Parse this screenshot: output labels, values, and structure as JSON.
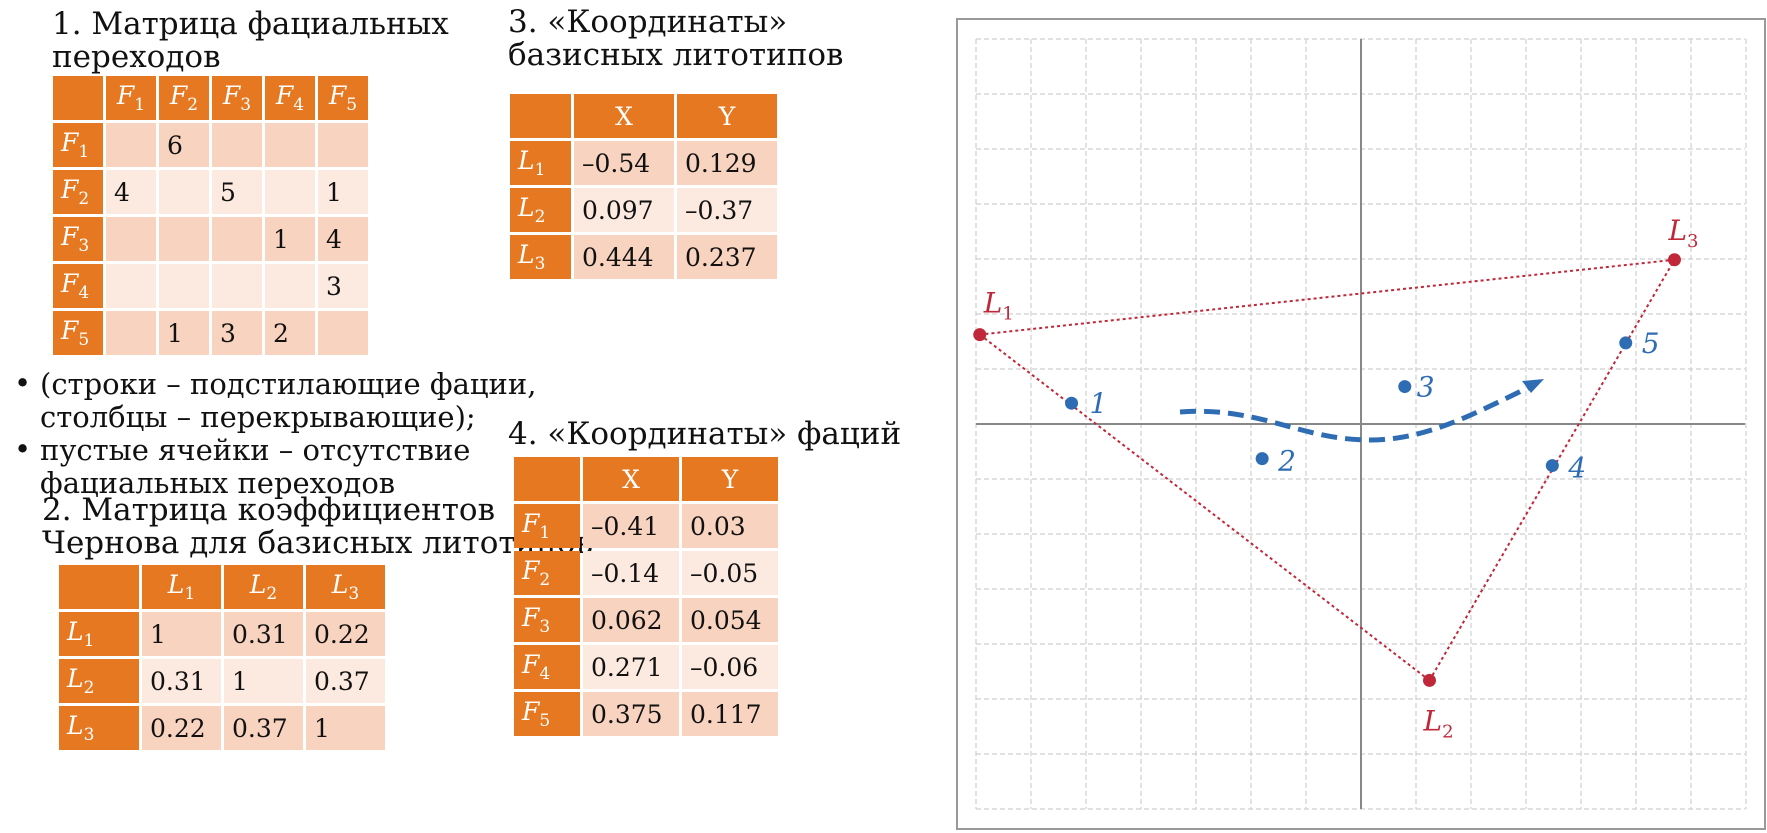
{
  "section1": {
    "title_line1": "1. Матрица фациальных",
    "title_line2": "переходов",
    "col_headers": [
      "F1",
      "F2",
      "F3",
      "F4",
      "F5"
    ],
    "rows": [
      {
        "h": "F1",
        "cells": [
          "",
          "6",
          "",
          "",
          ""
        ]
      },
      {
        "h": "F2",
        "cells": [
          "4",
          "",
          "5",
          "",
          "1"
        ]
      },
      {
        "h": "F3",
        "cells": [
          "",
          "",
          "",
          "1",
          "4"
        ]
      },
      {
        "h": "F4",
        "cells": [
          "",
          "",
          "",
          "",
          "3"
        ]
      },
      {
        "h": "F5",
        "cells": [
          "",
          "1",
          "3",
          "2",
          ""
        ]
      }
    ]
  },
  "notes": [
    "(строки – подстилающие фации,",
    "столбцы – перекрывающие);",
    "пустые ячейки – отсутствие",
    "фациальных переходов"
  ],
  "section2": {
    "title_line1": "2. Матрица коэффициентов",
    "title_line2": "Чернова для базисных литотипов",
    "col_headers": [
      "L1",
      "L2",
      "L3"
    ],
    "rows": [
      {
        "h": "L1",
        "cells": [
          "1",
          "0.31",
          "0.22"
        ]
      },
      {
        "h": "L2",
        "cells": [
          "0.31",
          "1",
          "0.37"
        ]
      },
      {
        "h": "L3",
        "cells": [
          "0.22",
          "0.37",
          "1"
        ]
      }
    ]
  },
  "section3": {
    "title_line1": "3. «Координаты»",
    "title_line2": "базисных литотипов",
    "col_headers": [
      "X",
      "Y"
    ],
    "rows": [
      {
        "h": "L1",
        "cells": [
          "–0.54",
          "0.129"
        ]
      },
      {
        "h": "L2",
        "cells": [
          "0.097",
          "–0.37"
        ]
      },
      {
        "h": "L3",
        "cells": [
          "0.444",
          "0.237"
        ]
      }
    ]
  },
  "section4": {
    "title": "4. «Координаты» фаций",
    "col_headers": [
      "X",
      "Y"
    ],
    "rows": [
      {
        "h": "F1",
        "cells": [
          "–0.41",
          "0.03"
        ]
      },
      {
        "h": "F2",
        "cells": [
          "–0.14",
          "–0.05"
        ]
      },
      {
        "h": "F3",
        "cells": [
          "0.062",
          "0.054"
        ]
      },
      {
        "h": "F4",
        "cells": [
          "0.271",
          "–0.06"
        ]
      },
      {
        "h": "F5",
        "cells": [
          "0.375",
          "0.117"
        ]
      }
    ]
  },
  "chart_data": {
    "type": "scatter",
    "grid": true,
    "xlim": [
      -0.7,
      0.7
    ],
    "ylim": [
      -0.7,
      0.7
    ],
    "basis_points": [
      {
        "label": "L",
        "sub": "1",
        "x": -0.54,
        "y": 0.129
      },
      {
        "label": "L",
        "sub": "2",
        "x": 0.097,
        "y": -0.37
      },
      {
        "label": "L",
        "sub": "3",
        "x": 0.444,
        "y": 0.237
      }
    ],
    "facies_points": [
      {
        "label": "1",
        "x": -0.41,
        "y": 0.03
      },
      {
        "label": "2",
        "x": -0.14,
        "y": -0.05
      },
      {
        "label": "3",
        "x": 0.062,
        "y": 0.054
      },
      {
        "label": "4",
        "x": 0.271,
        "y": -0.06
      },
      {
        "label": "5",
        "x": 0.375,
        "y": 0.117
      }
    ],
    "colors": {
      "basis": "#c0283a",
      "facies": "#2e6db4",
      "grid": "#cfcfcf",
      "axis": "#888888",
      "header": "#e57821"
    }
  }
}
